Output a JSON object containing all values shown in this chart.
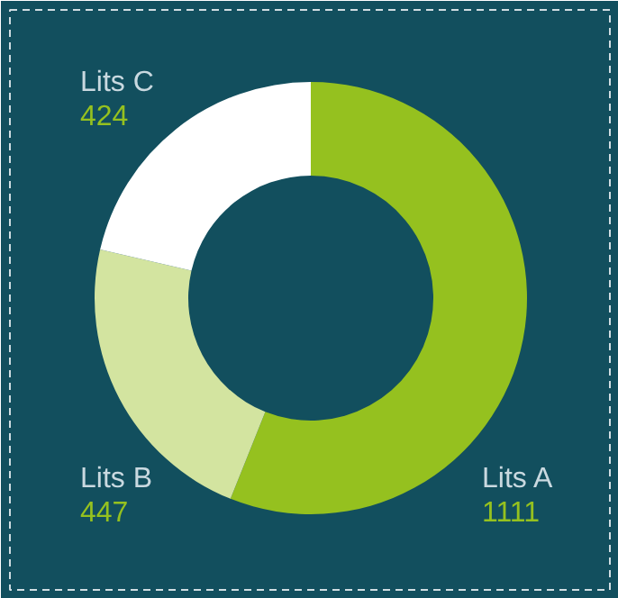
{
  "chart_data": {
    "type": "donut",
    "categories": [
      "Lits A",
      "Lits B",
      "Lits C"
    ],
    "values": [
      1111,
      447,
      424
    ],
    "colors": [
      "#95c11f",
      "#d3e4a0",
      "#ffffff"
    ],
    "data_labels": true
  }
}
